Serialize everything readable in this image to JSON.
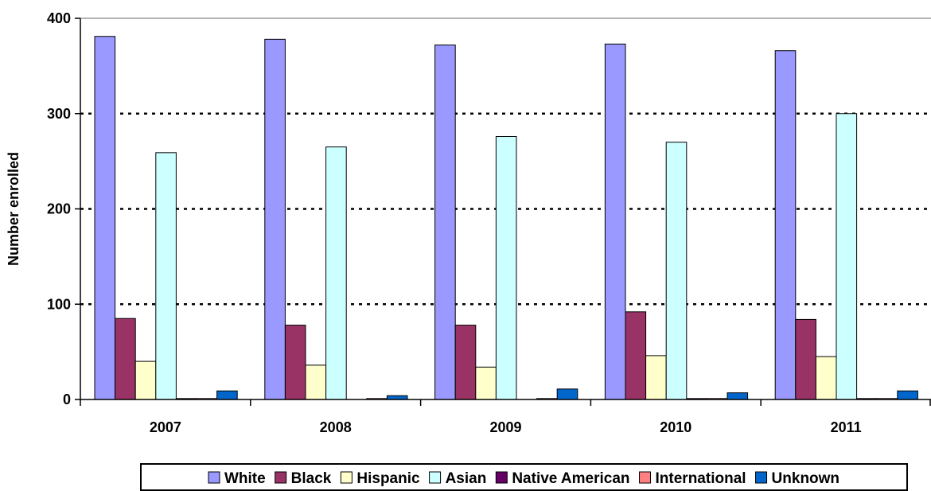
{
  "chart_data": {
    "type": "bar",
    "title": "",
    "xlabel": "",
    "ylabel": "Number enrolled",
    "ylim": [
      0,
      400
    ],
    "yticks": [
      0,
      100,
      200,
      300,
      400
    ],
    "grid": "horizontal-dotted",
    "legend_position": "bottom",
    "categories": [
      "2007",
      "2008",
      "2009",
      "2010",
      "2011"
    ],
    "series": [
      {
        "name": "White",
        "color": "#9999ff",
        "values": [
          381,
          378,
          372,
          373,
          366
        ]
      },
      {
        "name": "Black",
        "color": "#993366",
        "values": [
          85,
          78,
          78,
          92,
          84
        ]
      },
      {
        "name": "Hispanic",
        "color": "#ffffcc",
        "values": [
          40,
          36,
          34,
          46,
          45
        ]
      },
      {
        "name": "Asian",
        "color": "#ccffff",
        "values": [
          259,
          265,
          276,
          270,
          300
        ]
      },
      {
        "name": "Native American",
        "color": "#660066",
        "values": [
          1,
          0,
          0,
          1,
          1
        ]
      },
      {
        "name": "International",
        "color": "#ff8080",
        "values": [
          1,
          1,
          1,
          1,
          1
        ]
      },
      {
        "name": "Unknown",
        "color": "#0066cc",
        "values": [
          9,
          4,
          11,
          7,
          9
        ]
      }
    ]
  }
}
